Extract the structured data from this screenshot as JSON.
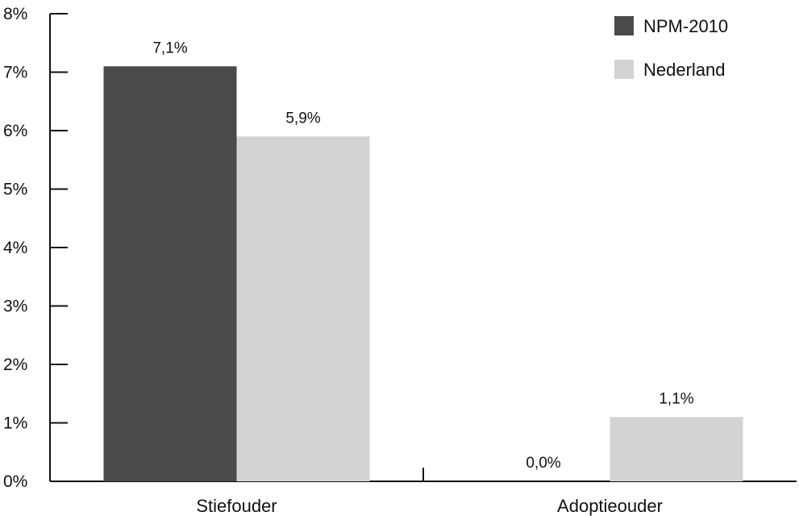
{
  "chart_data": {
    "type": "bar",
    "title": "",
    "xlabel": "",
    "ylabel": "",
    "categories": [
      "Stiefouder",
      "Adoptieouder"
    ],
    "series": [
      {
        "name": "NPM-2010",
        "color": "#4a4a4c",
        "values": [
          7.1,
          0.0
        ],
        "labels": [
          "7,1%",
          "0,0%"
        ]
      },
      {
        "name": "Nederland",
        "color": "#d2d3d5",
        "values": [
          5.9,
          1.1
        ],
        "labels": [
          "5,9%",
          "1,1%"
        ]
      }
    ],
    "ylim": [
      0,
      8
    ],
    "yticks": [
      0,
      1,
      2,
      3,
      4,
      5,
      6,
      7,
      8
    ],
    "ytick_labels": [
      "0%",
      "1%",
      "2%",
      "3%",
      "4%",
      "5%",
      "6%",
      "7%",
      "8%"
    ],
    "grid": false,
    "legend_position": "top-right"
  }
}
